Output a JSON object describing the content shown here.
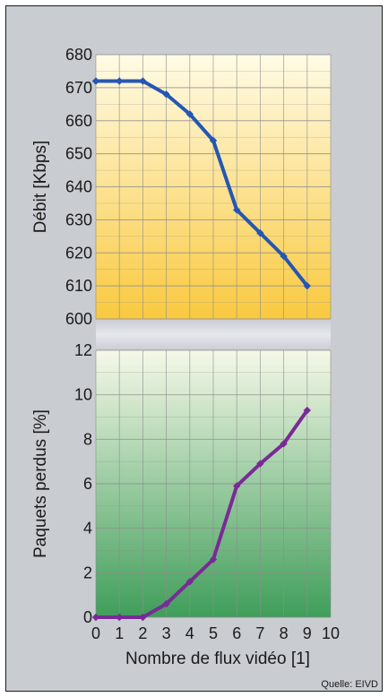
{
  "source": "Quelle: EIVD",
  "colors": {
    "frame_bg": "#c9cdd2",
    "top_panel_gradient": [
      "#fffbe6",
      "#f9c93f"
    ],
    "bottom_panel_gradient": [
      "#f6f8e8",
      "#3f9e5a"
    ],
    "grid": "#8d8d8d",
    "series_top": "#2457b3",
    "series_bottom": "#7a2a96"
  },
  "chart_data": [
    {
      "type": "line",
      "xlabel": "",
      "ylabel": "Débit [Kbps]",
      "x": [
        0,
        1,
        2,
        3,
        4,
        5,
        6,
        7,
        8,
        9
      ],
      "series": [
        {
          "values": [
            672,
            672,
            672,
            668,
            662,
            654,
            633,
            626,
            619,
            610
          ]
        }
      ],
      "xlim": [
        0,
        10
      ],
      "ylim": [
        600,
        680
      ],
      "yticks": [
        "600",
        "610",
        "620",
        "630",
        "640",
        "650",
        "660",
        "670",
        "680"
      ],
      "grid": true,
      "color": "#2457b3"
    },
    {
      "type": "line",
      "xlabel": "Nombre de flux vidéo [1]",
      "ylabel": "Paquets perdus [%]",
      "x": [
        0,
        1,
        2,
        3,
        4,
        5,
        6,
        7,
        8,
        9
      ],
      "series": [
        {
          "values": [
            0,
            0,
            0,
            0.6,
            1.6,
            2.6,
            5.9,
            6.9,
            7.8,
            9.3
          ]
        }
      ],
      "xlim": [
        0,
        10
      ],
      "ylim": [
        0,
        12
      ],
      "yticks": [
        "0",
        "2",
        "4",
        "6",
        "8",
        "10",
        "12"
      ],
      "xticks": [
        "0",
        "1",
        "2",
        "3",
        "4",
        "5",
        "6",
        "7",
        "8",
        "9",
        "10"
      ],
      "grid": true,
      "color": "#7a2a96"
    }
  ]
}
